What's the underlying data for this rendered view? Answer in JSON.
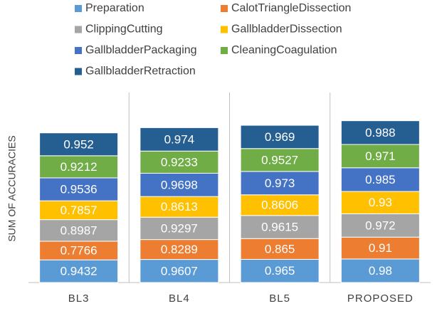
{
  "chart_data": {
    "type": "stacked_bar",
    "y_label": "SUM OF ACCURACIES",
    "categories": [
      "BL3",
      "BL4",
      "BL5",
      "PROPOSED"
    ],
    "ylim": [
      0,
      8
    ],
    "series": [
      {
        "name": "Preparation",
        "color": "#5B9BD5",
        "values": [
          0.9432,
          0.9607,
          0.965,
          0.98
        ]
      },
      {
        "name": "CalotTriangleDissection",
        "color": "#ED7D31",
        "values": [
          0.7766,
          0.8289,
          0.865,
          0.91
        ]
      },
      {
        "name": "ClippingCutting",
        "color": "#A5A5A5",
        "values": [
          0.8987,
          0.9297,
          0.9615,
          0.972
        ]
      },
      {
        "name": "GallbladderDissection",
        "color": "#FFC000",
        "values": [
          0.7857,
          0.8613,
          0.8606,
          0.93
        ]
      },
      {
        "name": "GallbladderPackaging",
        "color": "#4472C4",
        "values": [
          0.9536,
          0.9698,
          0.973,
          0.985
        ]
      },
      {
        "name": "CleaningCoagulation",
        "color": "#70AD47",
        "values": [
          0.9212,
          0.9233,
          0.9527,
          0.971
        ]
      },
      {
        "name": "GallbladderRetraction",
        "color": "#255E91",
        "values": [
          0.952,
          0.974,
          0.969,
          0.988
        ]
      }
    ]
  }
}
